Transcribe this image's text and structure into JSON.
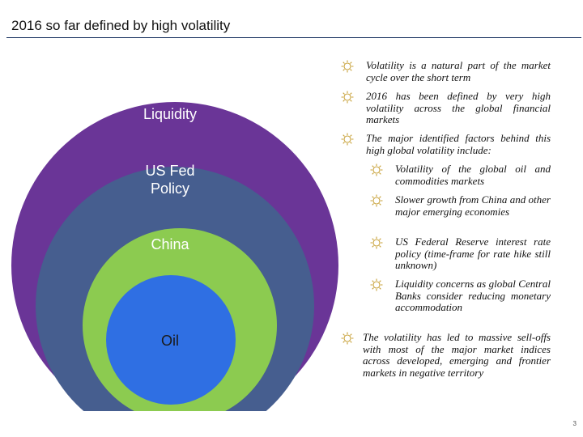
{
  "title": "2016 so far defined by high volatility",
  "rings": {
    "liquidity": "Liquidity",
    "fed_line1": "US Fed",
    "fed_line2": "Policy",
    "china": "China",
    "oil": "Oil"
  },
  "colors": {
    "liquidity": "#6a3597",
    "fed": "#465e8f",
    "china": "#8ccb50",
    "oil": "#2f6fe3",
    "bullet_icon": "#c8a23a",
    "rule": "#1f3864"
  },
  "bullets": [
    "Volatility is a natural part of the market cycle over the short term",
    "2016 has been defined by very high volatility across the global financial markets",
    "The major identified factors behind this high global volatility include:"
  ],
  "sub_bullets": [
    "Volatility of the global oil and commodities markets",
    "Slower growth from China and other major emerging economies",
    "US Federal Reserve interest rate policy (time-frame for rate hike still unknown)",
    "Liquidity concerns as global Central Banks consider reducing monetary accommodation"
  ],
  "final_bullet": "The volatility has led to massive sell-offs with most of the major market indices across developed, emerging and frontier markets in negative territory",
  "page_number": "3"
}
